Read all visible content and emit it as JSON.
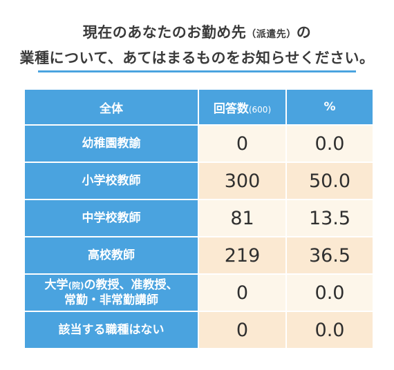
{
  "title": {
    "line1_main": "現在のあなたのお勤め先",
    "line1_paren": "（派遣先）",
    "line1_tail": "の",
    "line2": "業種について、あてはまるものをお知らせください。"
  },
  "chart_data": {
    "type": "table",
    "columns": {
      "label": "全体",
      "count_label": "回答数",
      "count_total": "(600)",
      "percent_label": "%"
    },
    "rows": [
      {
        "label_lines": [
          "幼稚園教諭"
        ],
        "count": 0,
        "percent": "0.0"
      },
      {
        "label_lines": [
          "小学校教師"
        ],
        "count": 300,
        "percent": "50.0"
      },
      {
        "label_lines": [
          "中学校教師"
        ],
        "count": 81,
        "percent": "13.5"
      },
      {
        "label_lines": [
          "高校教師"
        ],
        "count": 219,
        "percent": "36.5"
      },
      {
        "label_pre": "大学",
        "label_paren": "(院)",
        "label_post": "の教授、准教授、",
        "label_line2": "常勤・非常勤講師",
        "count": 0,
        "percent": "0.0"
      },
      {
        "label_lines": [
          "該当する職種はない"
        ],
        "count": 0,
        "percent": "0.0"
      }
    ]
  },
  "colors": {
    "header_blue": "#4aa3df",
    "cell_light": "#fdf6ea",
    "cell_tan": "#fbe9d2"
  }
}
